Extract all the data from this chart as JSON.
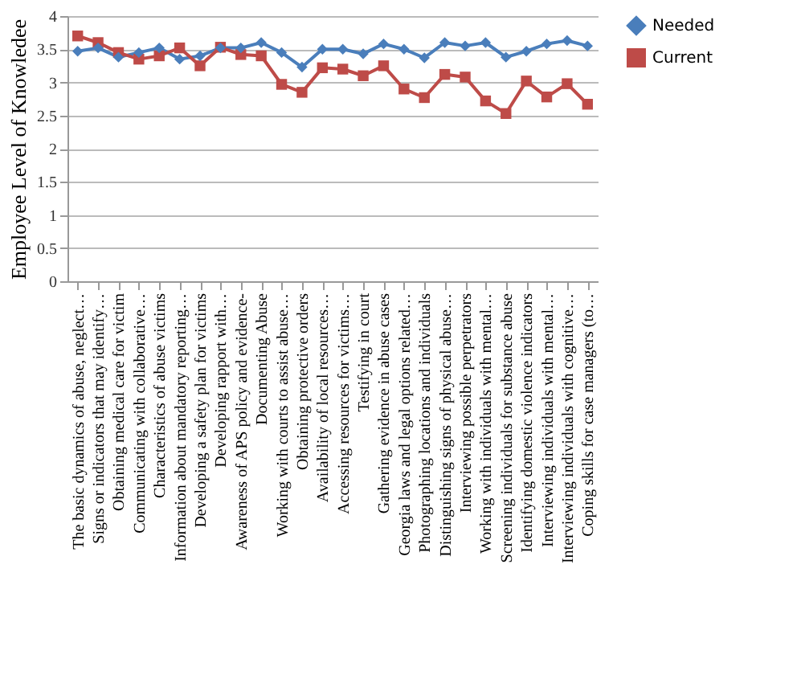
{
  "chart_data": {
    "type": "line",
    "ylabel": "Employee Level of Knowledee",
    "categories": [
      "The basic dynamics of abuse, neglect…",
      "Signs or indicators that may identify…",
      "Obtaining medical care for victim",
      "Communicating with collaborative…",
      "Characteristics of abuse victims",
      "Information about mandatory reporting…",
      "Developing a safety plan for victims",
      "Developing rapport with…",
      "Awareness of APS policy and evidence-",
      "Documenting Abuse",
      "Working with courts to assist abuse…",
      "Obtaining protective orders",
      "Availability of local resources…",
      "Accessing resources for victims…",
      "Testifying in court",
      "Gathering evidence in abuse cases",
      "Georgia laws and legal options related…",
      "Photographing locations and individuals",
      "Distinguishing signs of physical abuse…",
      "Interviewing possible perpetrators",
      "Working with individuals with mental…",
      "Screening individuals for substance abuse",
      "Identifying domestic violence indicators",
      "Interviewing individuals with mental…",
      "Interviewing individuals with cognitive…",
      "Coping skills for case managers (to…"
    ],
    "series": [
      {
        "name": "Needed",
        "color": "#4a7ebb",
        "marker": "diamond",
        "values": [
          3.47,
          3.52,
          3.38,
          3.45,
          3.52,
          3.35,
          3.4,
          3.52,
          3.52,
          3.6,
          3.45,
          3.23,
          3.5,
          3.5,
          3.43,
          3.58,
          3.5,
          3.37,
          3.6,
          3.55,
          3.6,
          3.38,
          3.47,
          3.58,
          3.63,
          3.55
        ]
      },
      {
        "name": "Current",
        "color": "#be4b48",
        "marker": "square",
        "values": [
          3.7,
          3.6,
          3.45,
          3.35,
          3.4,
          3.52,
          3.25,
          3.53,
          3.42,
          3.4,
          2.97,
          2.85,
          3.22,
          3.2,
          3.1,
          3.25,
          2.9,
          2.77,
          3.12,
          3.08,
          2.72,
          2.53,
          3.02,
          2.78,
          2.98,
          2.67
        ]
      }
    ],
    "ylim": [
      0,
      4
    ],
    "yticks": [
      0,
      0.5,
      1,
      1.5,
      2,
      2.5,
      3,
      3.5,
      4
    ],
    "grid": "y",
    "legend": "right",
    "line_style": "solid"
  }
}
